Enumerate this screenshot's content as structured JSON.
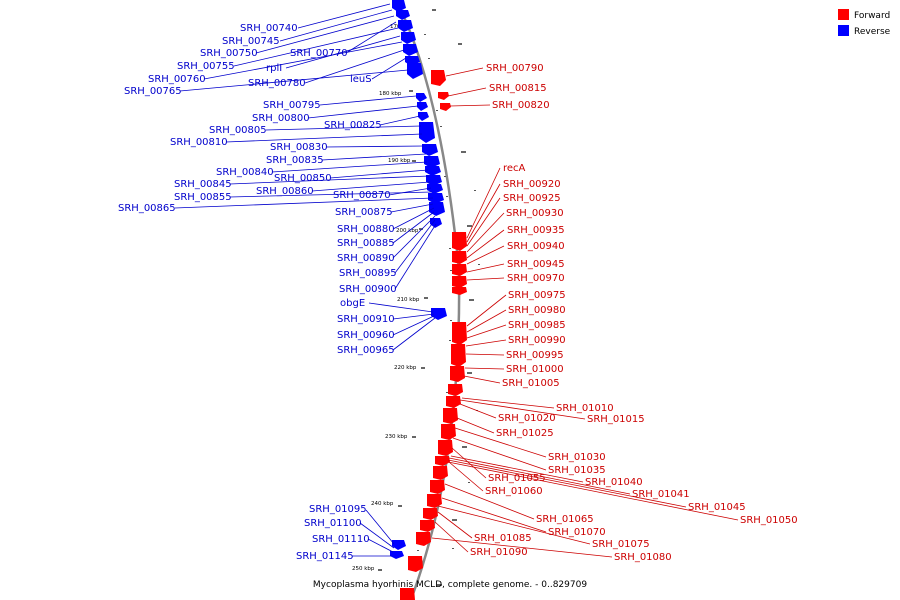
{
  "caption": "Mycoplasma hyorhinis MCLD, complete genome. - 0..829709",
  "legend": [
    {
      "label": "Forward",
      "color": "#ff0000"
    },
    {
      "label": "Reverse",
      "color": "#0000ff"
    }
  ],
  "colors": {
    "forward_fill": "#ff0000",
    "forward_line": "#cc0000",
    "reverse_fill": "#0000ff",
    "reverse_line": "#0000cc",
    "backbone": "#888888"
  },
  "scale_labels": [
    "170 kbp",
    "180 kbp",
    "190 kbp",
    "200 kbp",
    "210 kbp",
    "220 kbp",
    "230 kbp",
    "240 kbp",
    "250 kbp"
  ],
  "reverse_labels": [
    "SRH_00740",
    "SRH_00745",
    "SRH_00750",
    "SRH_00770",
    "SRH_00755",
    "rplI",
    "SRH_00760",
    "SRH_00780",
    "leuS",
    "SRH_00765",
    "SRH_00795",
    "SRH_00800",
    "SRH_00825",
    "SRH_00805",
    "SRH_00810",
    "SRH_00830",
    "SRH_00835",
    "SRH_00840",
    "SRH_00850",
    "SRH_00845",
    "SRH_00860",
    "SRH_00870",
    "SRH_00855",
    "SRH_00865",
    "SRH_00875",
    "SRH_00880",
    "SRH_00885",
    "SRH_00890",
    "SRH_00895",
    "SRH_00900",
    "obgE",
    "SRH_00910",
    "SRH_00960",
    "SRH_00965",
    "SRH_01095",
    "SRH_01100",
    "SRH_01110",
    "SRH_01145"
  ],
  "forward_labels": [
    "SRH_00790",
    "SRH_00815",
    "SRH_00820",
    "recA",
    "SRH_00920",
    "SRH_00925",
    "SRH_00930",
    "SRH_00935",
    "SRH_00940",
    "SRH_00945",
    "SRH_00970",
    "SRH_00975",
    "SRH_00980",
    "SRH_00985",
    "SRH_00990",
    "SRH_00995",
    "SRH_01000",
    "SRH_01005",
    "SRH_01010",
    "SRH_01020",
    "SRH_01015",
    "SRH_01025",
    "SRH_01030",
    "SRH_01035",
    "SRH_01055",
    "SRH_01040",
    "SRH_01060",
    "SRH_01041",
    "SRH_01045",
    "SRH_01050",
    "SRH_01065",
    "SRH_01070",
    "SRH_01085",
    "SRH_01075",
    "SRH_01090",
    "SRH_01080"
  ]
}
